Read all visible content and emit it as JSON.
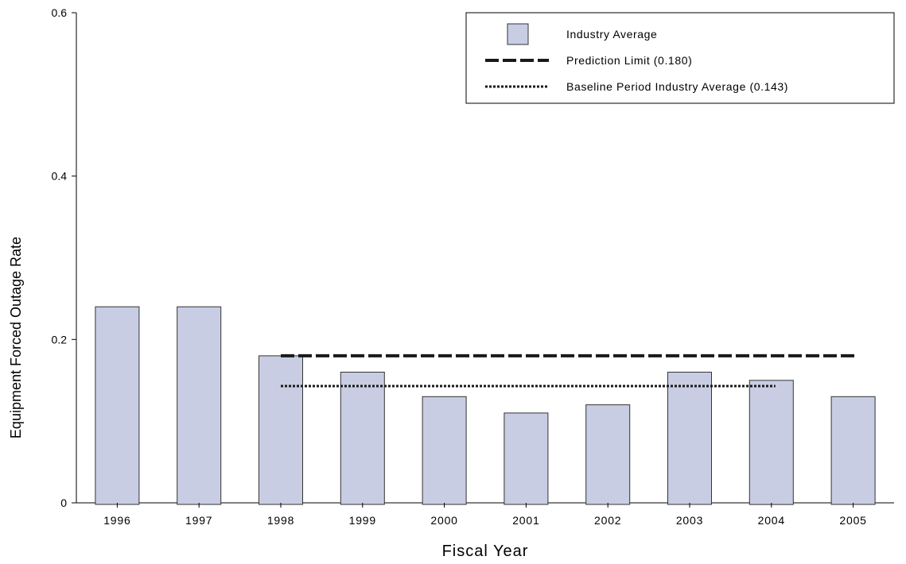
{
  "chart_data": {
    "type": "bar",
    "title": "",
    "xlabel": "Fiscal Year",
    "ylabel": "Equipment Forced Outage Rate",
    "categories": [
      "1996",
      "1997",
      "1998",
      "1999",
      "2000",
      "2001",
      "2002",
      "2003",
      "2004",
      "2005"
    ],
    "series": [
      {
        "name": "Industry Average",
        "values": [
          0.24,
          0.24,
          0.18,
          0.16,
          0.13,
          0.11,
          0.12,
          0.16,
          0.15,
          0.13
        ]
      }
    ],
    "ylim": [
      0,
      0.6
    ],
    "yticks": [
      0,
      0.2,
      0.4,
      0.6
    ],
    "ytick_labels": [
      "0",
      "0.2",
      "0.4",
      "0.6"
    ],
    "reference_lines": [
      {
        "name": "Prediction Limit (0.180)",
        "value": 0.18,
        "style": "dashed",
        "from": "1998",
        "to": "2005"
      },
      {
        "name": "Baseline Period Industry Average (0.143)",
        "value": 0.143,
        "style": "dotted",
        "from": "1998",
        "to": "2004"
      }
    ],
    "legend_position": "top-right",
    "grid": false,
    "colors": {
      "bar_fill": "#c8cde4",
      "bar_stroke": "#333333",
      "line": "#1a1a1a"
    }
  }
}
